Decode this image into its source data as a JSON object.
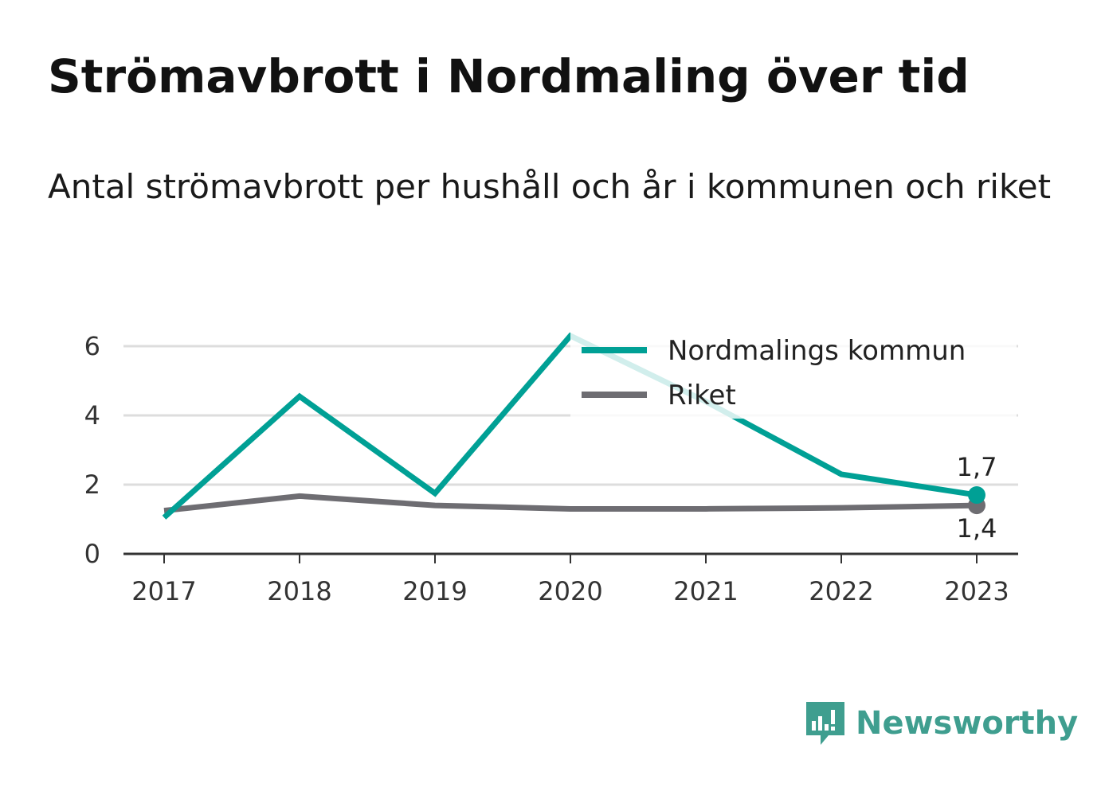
{
  "header": {
    "title": "Strömavbrott i Nordmaling över tid",
    "subtitle": "Antal strömavbrott per hushåll och år i kommunen och riket"
  },
  "colors": {
    "nordmaling": "#00a095",
    "riket": "#6e6d72",
    "grid": "#dddddd",
    "axis": "#333333",
    "brand": "#3f9e8f"
  },
  "chart_data": {
    "type": "line",
    "title": "Strömavbrott i Nordmaling över tid",
    "subtitle": "Antal strömavbrott per hushåll och år i kommunen och riket",
    "x": [
      "2017",
      "2018",
      "2019",
      "2020",
      "2021",
      "2022",
      "2023"
    ],
    "series": [
      {
        "name": "Nordmalings kommun",
        "values": [
          1.05,
          4.55,
          1.75,
          6.3,
          4.4,
          2.3,
          1.7
        ]
      },
      {
        "name": "Riket",
        "values": [
          1.25,
          1.67,
          1.4,
          1.3,
          1.3,
          1.33,
          1.4
        ]
      }
    ],
    "yticks": [
      "0",
      "2",
      "4",
      "6"
    ],
    "ylim": [
      0,
      6.5
    ],
    "grid": true,
    "legend": "top-right",
    "end_labels": [
      "1,7",
      "1,4"
    ]
  },
  "brand": {
    "name": "Newsworthy",
    "icon": "newsworthy-logo-icon"
  }
}
